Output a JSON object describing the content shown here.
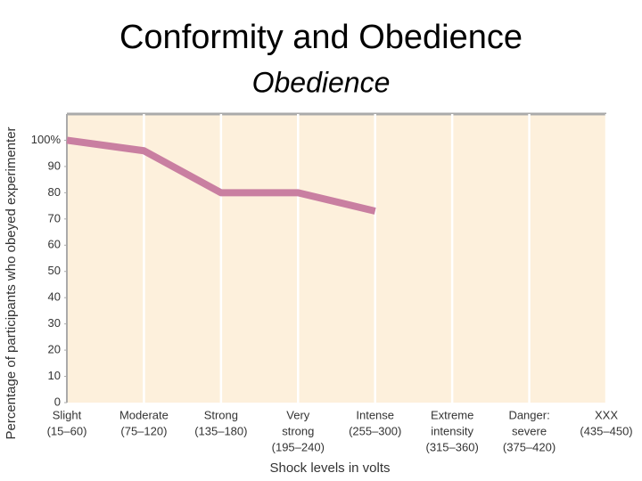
{
  "chart_data": {
    "type": "line",
    "title": "Conformity and Obedience",
    "subtitle": "Obedience",
    "y_label": "Percentage of participants who obeyed experimenter",
    "x_label": "Shock levels in volts",
    "categories": [
      [
        "Slight",
        "(15–60)"
      ],
      [
        "Moderate",
        "(75–120)"
      ],
      [
        "Strong",
        "(135–180)"
      ],
      [
        "Very",
        "strong",
        "(195–240)"
      ],
      [
        "Intense",
        "(255–300)"
      ],
      [
        "Extreme",
        "intensity",
        "(315–360)"
      ],
      [
        "Danger:",
        "severe",
        "(375–420)"
      ],
      [
        "XXX",
        "(435–450)"
      ]
    ],
    "values": [
      100,
      96,
      80,
      80,
      73,
      null,
      null,
      null
    ],
    "color": "#c97fa1",
    "background": "#fdf0dc",
    "ylim": [
      0,
      110
    ],
    "yticks": [
      0,
      10,
      20,
      30,
      40,
      50,
      60,
      70,
      80,
      90,
      {
        "value": 100,
        "label": "100%"
      }
    ],
    "grid": "vertical"
  }
}
